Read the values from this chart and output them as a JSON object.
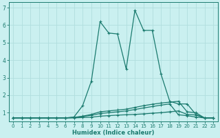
{
  "xlabel": "Humidex (Indice chaleur)",
  "background_color": "#caf0f0",
  "grid_color": "#b0dede",
  "line_color": "#1a7a6e",
  "xlim": [
    -0.5,
    23.5
  ],
  "ylim": [
    0.5,
    7.3
  ],
  "x_ticks": [
    0,
    1,
    2,
    3,
    4,
    5,
    6,
    7,
    8,
    9,
    10,
    11,
    12,
    13,
    14,
    15,
    16,
    17,
    18,
    19,
    20,
    21,
    22,
    23
  ],
  "y_ticks": [
    1,
    2,
    3,
    4,
    5,
    6,
    7
  ],
  "series_main_x": [
    0,
    1,
    2,
    3,
    4,
    5,
    6,
    7,
    8,
    9,
    10,
    11,
    12,
    13,
    14,
    15,
    16,
    17,
    18,
    19,
    20,
    21,
    22,
    23
  ],
  "series_main_y": [
    0.7,
    0.7,
    0.7,
    0.7,
    0.7,
    0.7,
    0.7,
    0.75,
    1.4,
    2.8,
    6.2,
    5.55,
    5.5,
    3.5,
    6.85,
    5.7,
    5.7,
    3.2,
    1.65,
    1.5,
    1.5,
    0.9,
    0.7,
    0.7
  ],
  "series2_x": [
    0,
    1,
    2,
    3,
    4,
    5,
    6,
    7,
    8,
    9,
    10,
    11,
    12,
    13,
    14,
    15,
    16,
    17,
    18,
    19,
    20,
    21,
    22,
    23
  ],
  "series2_y": [
    0.7,
    0.7,
    0.7,
    0.7,
    0.7,
    0.7,
    0.7,
    0.73,
    0.8,
    0.9,
    1.05,
    1.1,
    1.15,
    1.2,
    1.3,
    1.4,
    1.48,
    1.55,
    1.6,
    1.65,
    1.05,
    1.0,
    0.7,
    0.7
  ],
  "series3_x": [
    0,
    1,
    2,
    3,
    4,
    5,
    6,
    7,
    8,
    9,
    10,
    11,
    12,
    13,
    14,
    15,
    16,
    17,
    18,
    19,
    20,
    21,
    22,
    23
  ],
  "series3_y": [
    0.7,
    0.7,
    0.7,
    0.7,
    0.7,
    0.7,
    0.7,
    0.72,
    0.78,
    0.85,
    0.95,
    1.0,
    1.05,
    1.1,
    1.18,
    1.27,
    1.35,
    1.43,
    1.5,
    0.88,
    0.83,
    0.75,
    0.7,
    0.7
  ],
  "series4_x": [
    0,
    1,
    2,
    3,
    4,
    5,
    6,
    7,
    8,
    9,
    10,
    11,
    12,
    13,
    14,
    15,
    16,
    17,
    18,
    19,
    20,
    21,
    22,
    23
  ],
  "series4_y": [
    0.7,
    0.7,
    0.7,
    0.7,
    0.7,
    0.7,
    0.7,
    0.7,
    0.72,
    0.74,
    0.8,
    0.83,
    0.86,
    0.88,
    0.9,
    0.93,
    0.97,
    1.0,
    1.05,
    1.1,
    0.9,
    0.87,
    0.7,
    0.7
  ],
  "markersize": 3,
  "linewidth": 0.9,
  "tick_fontsize": 5,
  "xlabel_fontsize": 6
}
